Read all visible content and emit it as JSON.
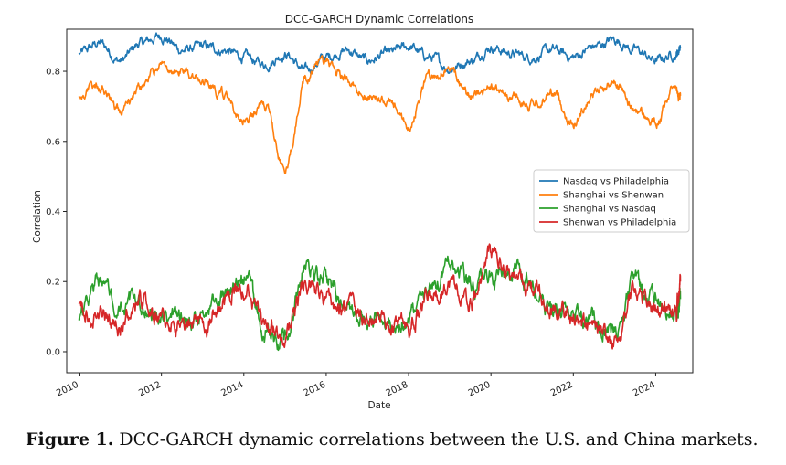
{
  "caption": {
    "label": "Figure 1.",
    "text": "DCC-GARCH dynamic correlations between the U.S. and China markets."
  },
  "chart_data": {
    "type": "line",
    "title": "DCC-GARCH Dynamic Correlations",
    "xlabel": "Date",
    "ylabel": "Correlation",
    "xlim": [
      2009.7,
      2024.9
    ],
    "ylim": [
      -0.06,
      0.92
    ],
    "x_ticks": [
      2010,
      2012,
      2014,
      2016,
      2018,
      2020,
      2022,
      2024
    ],
    "y_ticks": [
      0.0,
      0.2,
      0.4,
      0.6,
      0.8
    ],
    "y_tick_labels": [
      "0.0",
      "0.2",
      "0.4",
      "0.6",
      "0.8"
    ],
    "legend_position": "center-right",
    "grid": false,
    "x": [
      2010.0,
      2010.5,
      2011.0,
      2011.5,
      2012.0,
      2012.5,
      2013.0,
      2013.5,
      2014.0,
      2014.5,
      2015.0,
      2015.5,
      2016.0,
      2016.5,
      2017.0,
      2017.5,
      2018.0,
      2018.5,
      2019.0,
      2019.5,
      2020.0,
      2020.5,
      2021.0,
      2021.5,
      2022.0,
      2022.5,
      2023.0,
      2023.5,
      2024.0,
      2024.5,
      2024.6
    ],
    "series": [
      {
        "name": "Nasdaq vs Philadelphia",
        "color": "#1f77b4",
        "values": [
          0.85,
          0.88,
          0.83,
          0.88,
          0.9,
          0.86,
          0.87,
          0.86,
          0.84,
          0.82,
          0.85,
          0.8,
          0.84,
          0.86,
          0.83,
          0.85,
          0.87,
          0.84,
          0.81,
          0.83,
          0.87,
          0.85,
          0.84,
          0.86,
          0.84,
          0.87,
          0.89,
          0.86,
          0.83,
          0.85,
          0.87
        ]
      },
      {
        "name": "Shanghai vs Shenwan",
        "color": "#ff7f0e",
        "values": [
          0.73,
          0.76,
          0.69,
          0.75,
          0.82,
          0.8,
          0.77,
          0.73,
          0.66,
          0.7,
          0.52,
          0.78,
          0.83,
          0.78,
          0.73,
          0.71,
          0.64,
          0.79,
          0.8,
          0.73,
          0.75,
          0.73,
          0.7,
          0.74,
          0.65,
          0.74,
          0.77,
          0.69,
          0.65,
          0.76,
          0.73
        ]
      },
      {
        "name": "Shanghai vs Nasdaq",
        "color": "#2ca02c",
        "values": [
          0.1,
          0.21,
          0.15,
          0.12,
          0.1,
          0.08,
          0.1,
          0.16,
          0.22,
          0.06,
          0.03,
          0.24,
          0.2,
          0.13,
          0.11,
          0.07,
          0.09,
          0.17,
          0.24,
          0.19,
          0.21,
          0.23,
          0.19,
          0.13,
          0.11,
          0.09,
          0.05,
          0.2,
          0.14,
          0.1,
          0.15
        ]
      },
      {
        "name": "Shenwan vs Philadelphia",
        "color": "#d62728",
        "values": [
          0.12,
          0.11,
          0.06,
          0.15,
          0.08,
          0.07,
          0.07,
          0.14,
          0.19,
          0.08,
          0.05,
          0.2,
          0.16,
          0.12,
          0.1,
          0.09,
          0.07,
          0.15,
          0.2,
          0.13,
          0.28,
          0.22,
          0.18,
          0.12,
          0.1,
          0.06,
          0.02,
          0.18,
          0.12,
          0.13,
          0.2
        ]
      }
    ]
  }
}
